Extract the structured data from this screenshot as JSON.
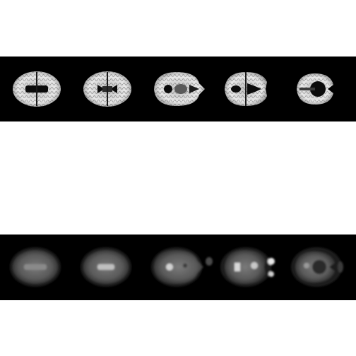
{
  "figure": {
    "background_color": "#ffffff",
    "strip_color": "#000000",
    "rows": [
      {
        "id": "t1-row",
        "kind": "structural-mri-axial-slices",
        "colors": {
          "tissue": "#e6e6e6",
          "inner": "#7a7a7a",
          "dark": "#0b0b0b"
        },
        "slices": [
          1,
          2,
          3,
          4,
          5
        ]
      },
      {
        "id": "dwi-row",
        "kind": "diffusion-mri-axial-slices",
        "colors": {
          "tissue": "#5a5a5a",
          "inner": "#8a8a8a",
          "bright": "#d2d2d2"
        },
        "slices": [
          1,
          2,
          3,
          4,
          5
        ]
      }
    ]
  }
}
